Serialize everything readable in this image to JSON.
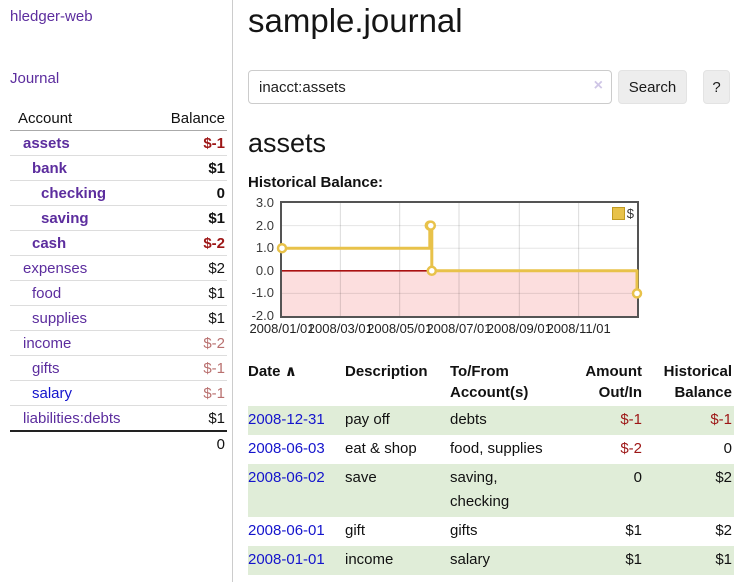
{
  "app": {
    "brand": "hledger-web",
    "nav_journal": "Journal"
  },
  "colors": {
    "link_purple": "#5c2d9e",
    "link_blue": "#1414cc",
    "negative_strong": "#9d1616",
    "negative_muted": "#b9706f",
    "row_stripe_green": "#e0edd8",
    "chart_line_gold": "#e8c24a",
    "negative_region_pink": "#fcdede",
    "zero_line_red": "#aa1111"
  },
  "sidebar": {
    "columns": {
      "account": "Account",
      "balance": "Balance"
    },
    "accounts": [
      {
        "name": "assets",
        "balance": "$-1",
        "indent": 0,
        "bold": true,
        "neg": "strong"
      },
      {
        "name": "bank",
        "balance": "$1",
        "indent": 1,
        "bold": true
      },
      {
        "name": "checking",
        "balance": "0",
        "indent": 2,
        "bold": true
      },
      {
        "name": "saving",
        "balance": "$1",
        "indent": 2,
        "bold": true
      },
      {
        "name": "cash",
        "balance": "$-2",
        "indent": 1,
        "bold": true,
        "neg": "strong"
      },
      {
        "name": "expenses",
        "balance": "$2",
        "indent": 0
      },
      {
        "name": "food",
        "balance": "$1",
        "indent": 1
      },
      {
        "name": "supplies",
        "balance": "$1",
        "indent": 1
      },
      {
        "name": "income",
        "balance": "$-2",
        "indent": 0,
        "neg": "muted"
      },
      {
        "name": "gifts",
        "balance": "$-1",
        "indent": 1,
        "neg": "muted"
      },
      {
        "name": "salary",
        "balance": "$-1",
        "indent": 1,
        "neg": "muted",
        "link": "blue"
      },
      {
        "name": "liabilities:debts",
        "balance": "$1",
        "indent": 0
      }
    ],
    "total": "0"
  },
  "header": {
    "title": "sample.journal"
  },
  "search": {
    "value": "inacct:assets",
    "clear_icon": "×",
    "button": "Search",
    "help_button": "?"
  },
  "account_page": {
    "heading": "assets",
    "chart_label": "Historical Balance:"
  },
  "chart_data": {
    "type": "line",
    "step": true,
    "title": "Historical Balance",
    "series": [
      {
        "name": "$",
        "color": "#e8c24a",
        "points": [
          [
            "2008-01-01",
            1
          ],
          [
            "2008-06-01",
            2
          ],
          [
            "2008-06-02",
            2
          ],
          [
            "2008-06-03",
            0
          ],
          [
            "2008-12-31",
            -1
          ]
        ]
      }
    ],
    "xrange": [
      "2008-01-01",
      "2008-12-31"
    ],
    "ylim": [
      -2,
      3
    ],
    "yticks": [
      "3.0",
      "2.0",
      "1.0",
      "0.0",
      "-1.0",
      "-2.0"
    ],
    "xticks": [
      "2008/01/01",
      "2008/03/01",
      "2008/05/01",
      "2008/07/01",
      "2008/09/01",
      "2008/11/01"
    ],
    "legend": {
      "label": "$",
      "position": "top-right"
    },
    "grid": true
  },
  "register": {
    "sort_icon": "∧",
    "columns": [
      {
        "label": "Date",
        "sorted": "asc"
      },
      {
        "label": "Description"
      },
      {
        "label": "To/From Account(s)"
      },
      {
        "label": "Amount Out/In",
        "align": "right"
      },
      {
        "label": "Historical Balance",
        "align": "right"
      }
    ],
    "rows": [
      {
        "date": "2008-12-31",
        "description": "pay off",
        "accounts": "debts",
        "amount": "$-1",
        "amount_neg": true,
        "balance": "$-1",
        "balance_neg": true
      },
      {
        "date": "2008-06-03",
        "description": "eat & shop",
        "accounts": "food, supplies",
        "amount": "$-2",
        "amount_neg": true,
        "balance": "0",
        "balance_neg": false
      },
      {
        "date": "2008-06-02",
        "description": "save",
        "accounts": "saving, checking",
        "amount": "0",
        "amount_neg": false,
        "balance": "$2",
        "balance_neg": false
      },
      {
        "date": "2008-06-01",
        "description": "gift",
        "accounts": "gifts",
        "amount": "$1",
        "amount_neg": false,
        "balance": "$2",
        "balance_neg": false
      },
      {
        "date": "2008-01-01",
        "description": "income",
        "accounts": "salary",
        "amount": "$1",
        "amount_neg": false,
        "balance": "$1",
        "balance_neg": false
      }
    ]
  }
}
